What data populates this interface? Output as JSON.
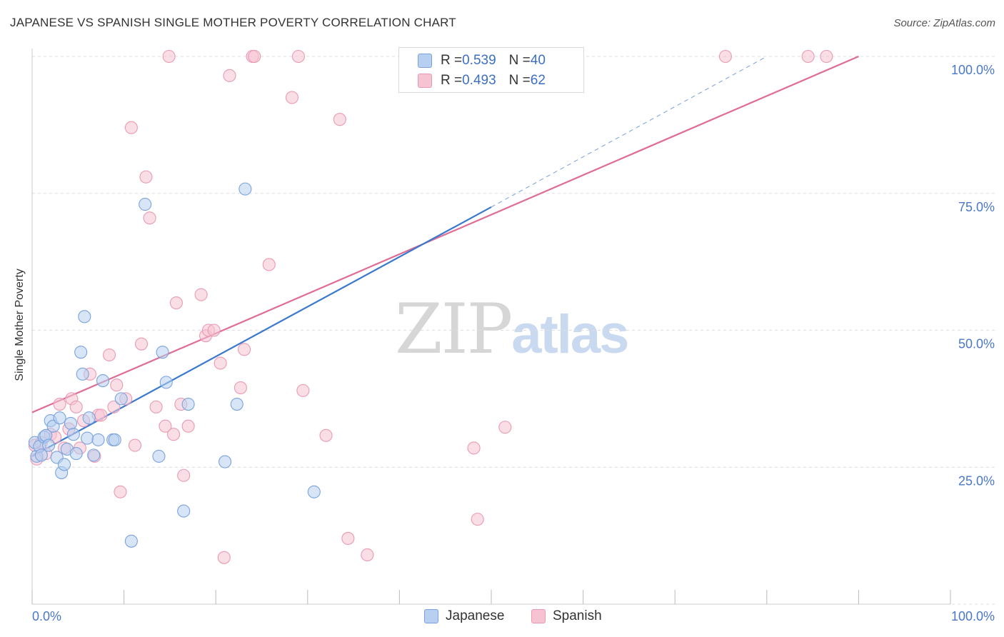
{
  "title": "JAPANESE VS SPANISH SINGLE MOTHER POVERTY CORRELATION CHART",
  "source": "Source: ZipAtlas.com",
  "watermark": {
    "zip": "ZIP",
    "atlas": "atlas"
  },
  "legend_stats": {
    "japanese": {
      "r_label": "R = ",
      "r": "0.539",
      "n_label": "N = ",
      "n": "40"
    },
    "spanish": {
      "r_label": "R = ",
      "r": "0.493",
      "n_label": "N = ",
      "n": "62"
    }
  },
  "colors": {
    "japanese_fill": "#b7cff1",
    "japanese_stroke": "#7aa3dd",
    "japanese_line": "#3a78d0",
    "spanish_fill": "#f6c3d2",
    "spanish_stroke": "#e99ab3",
    "spanish_line": "#e06b93",
    "tick_label": "#4a78c8",
    "grid": "#dddddd"
  },
  "chart_data": {
    "type": "scatter",
    "title": "JAPANESE VS SPANISH SINGLE MOTHER POVERTY CORRELATION CHART",
    "xlabel": "",
    "ylabel": "Single Mother Poverty",
    "xlim": [
      0,
      100
    ],
    "ylim": [
      0,
      103
    ],
    "x_tick_labels": [
      "0.0%",
      "100.0%"
    ],
    "y_ticks": [
      25,
      50,
      75,
      100
    ],
    "y_tick_labels": [
      "25.0%",
      "50.0%",
      "75.0%",
      "100.0%"
    ],
    "grid": true,
    "legend_position": "top-center",
    "series": [
      {
        "name": "Japanese",
        "points": [
          [
            0.3,
            29.5
          ],
          [
            0.5,
            27.0
          ],
          [
            0.8,
            28.8
          ],
          [
            1.0,
            27.2
          ],
          [
            1.3,
            30.5
          ],
          [
            1.5,
            30.8
          ],
          [
            1.8,
            29.0
          ],
          [
            2.0,
            33.5
          ],
          [
            2.3,
            32.5
          ],
          [
            2.7,
            26.8
          ],
          [
            3.0,
            34.0
          ],
          [
            3.2,
            24.0
          ],
          [
            3.5,
            25.5
          ],
          [
            3.8,
            28.3
          ],
          [
            4.2,
            33.0
          ],
          [
            4.5,
            31.0
          ],
          [
            4.8,
            27.5
          ],
          [
            5.3,
            46.0
          ],
          [
            5.5,
            42.0
          ],
          [
            5.7,
            52.5
          ],
          [
            6.0,
            30.3
          ],
          [
            6.2,
            34.0
          ],
          [
            6.7,
            27.2
          ],
          [
            7.2,
            30.0
          ],
          [
            7.7,
            40.8
          ],
          [
            8.8,
            30.0
          ],
          [
            9.0,
            30.0
          ],
          [
            9.7,
            37.5
          ],
          [
            10.8,
            11.5
          ],
          [
            12.3,
            73.0
          ],
          [
            13.8,
            27.0
          ],
          [
            14.2,
            46.0
          ],
          [
            14.6,
            40.5
          ],
          [
            16.5,
            17.0
          ],
          [
            17.0,
            36.5
          ],
          [
            21.0,
            26.0
          ],
          [
            22.3,
            36.5
          ],
          [
            23.2,
            75.8
          ],
          [
            30.7,
            20.5
          ],
          [
            46.8,
            100.0
          ]
        ]
      },
      {
        "name": "Spanish",
        "points": [
          [
            0.3,
            29.0
          ],
          [
            0.5,
            26.5
          ],
          [
            1.0,
            29.5
          ],
          [
            1.5,
            27.5
          ],
          [
            2.0,
            31.0
          ],
          [
            2.5,
            30.5
          ],
          [
            3.0,
            36.5
          ],
          [
            3.5,
            28.5
          ],
          [
            4.0,
            32.0
          ],
          [
            4.3,
            37.5
          ],
          [
            4.8,
            36.0
          ],
          [
            5.2,
            28.5
          ],
          [
            5.6,
            33.5
          ],
          [
            6.3,
            42.0
          ],
          [
            6.8,
            27.0
          ],
          [
            7.2,
            34.5
          ],
          [
            7.5,
            34.5
          ],
          [
            8.4,
            45.5
          ],
          [
            8.9,
            36.0
          ],
          [
            9.2,
            40.0
          ],
          [
            9.6,
            20.5
          ],
          [
            10.2,
            37.5
          ],
          [
            10.8,
            87.0
          ],
          [
            11.2,
            29.0
          ],
          [
            11.9,
            47.5
          ],
          [
            12.4,
            78.0
          ],
          [
            12.8,
            70.5
          ],
          [
            13.5,
            36.0
          ],
          [
            14.5,
            32.5
          ],
          [
            14.9,
            100.0
          ],
          [
            15.4,
            31.0
          ],
          [
            15.7,
            55.0
          ],
          [
            16.2,
            36.5
          ],
          [
            16.5,
            23.5
          ],
          [
            17.0,
            32.5
          ],
          [
            18.4,
            56.5
          ],
          [
            18.9,
            49.0
          ],
          [
            19.2,
            50.0
          ],
          [
            19.8,
            50.0
          ],
          [
            20.5,
            44.0
          ],
          [
            20.9,
            8.5
          ],
          [
            21.5,
            96.5
          ],
          [
            22.7,
            39.5
          ],
          [
            23.1,
            46.5
          ],
          [
            24.0,
            100.0
          ],
          [
            24.2,
            100.0
          ],
          [
            25.8,
            62.0
          ],
          [
            28.3,
            92.5
          ],
          [
            29.0,
            100.0
          ],
          [
            29.5,
            39.0
          ],
          [
            32.0,
            30.8
          ],
          [
            33.5,
            88.5
          ],
          [
            34.4,
            12.0
          ],
          [
            36.5,
            9.0
          ],
          [
            41.8,
            100.0
          ],
          [
            48.1,
            28.5
          ],
          [
            48.5,
            15.5
          ],
          [
            51.5,
            32.3
          ],
          [
            54.3,
            100.0
          ],
          [
            75.5,
            100.0
          ],
          [
            84.5,
            100.0
          ],
          [
            86.5,
            100.0
          ]
        ]
      }
    ],
    "trend_lines": [
      {
        "name": "Japanese",
        "x": [
          0,
          50
        ],
        "y": [
          27.0,
          72.5
        ],
        "dashed_extension": {
          "x": [
            50,
            80
          ],
          "y": [
            72.5,
            100.0
          ]
        }
      },
      {
        "name": "Spanish",
        "x": [
          0,
          90
        ],
        "y": [
          35.0,
          100.0
        ]
      }
    ]
  }
}
